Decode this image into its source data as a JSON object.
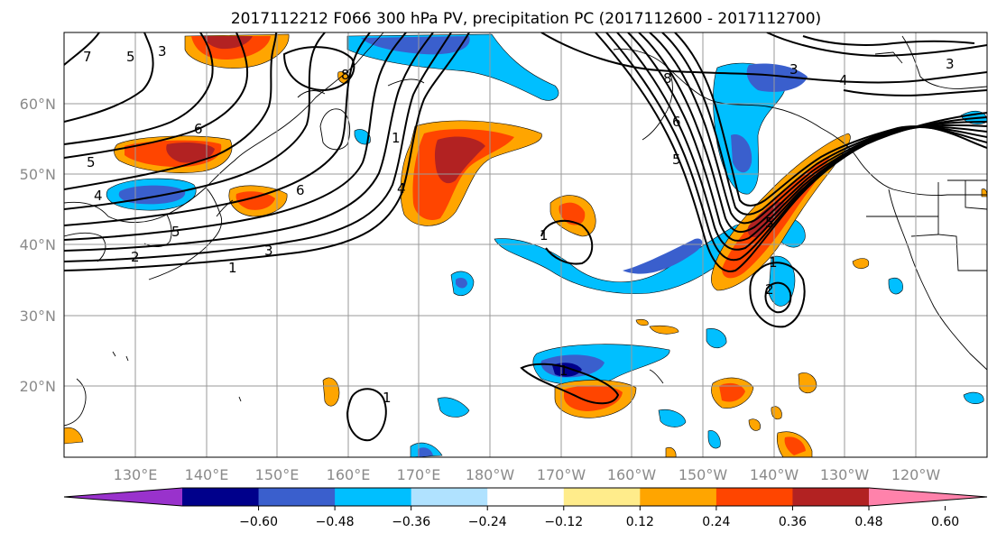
{
  "title": "2017112212 F066 300 hPa PV, precipitation PC (2017112600 - 2017112700)",
  "lat_labels": [
    "60°N",
    "50°N",
    "40°N",
    "30°N",
    "20°N"
  ],
  "lon_labels": [
    "130°E",
    "140°E",
    "150°E",
    "160°E",
    "170°E",
    "180°W",
    "170°W",
    "160°W",
    "150°W",
    "140°W",
    "130°W",
    "120°W"
  ],
  "colorbar": {
    "colors": [
      "#9932cc",
      "#00008b",
      "#3a5fcd",
      "#00bfff",
      "#b0e2ff",
      "#ffffff",
      "#ffec8b",
      "#ffa500",
      "#ff4500",
      "#b22222",
      "#ff82ab"
    ],
    "tick_labels": [
      "−0.60",
      "−0.48",
      "−0.36",
      "−0.24",
      "−0.12",
      "0.12",
      "0.24",
      "0.36",
      "0.48",
      "0.60"
    ]
  },
  "contour_labels": [
    "7",
    "5",
    "3",
    "8",
    "6",
    "5",
    "4",
    "6",
    "5",
    "3",
    "2",
    "1",
    "4",
    "1",
    "8",
    "6",
    "5",
    "3",
    "4",
    "3",
    "1",
    "5",
    "1",
    "2",
    "1",
    "1"
  ]
}
